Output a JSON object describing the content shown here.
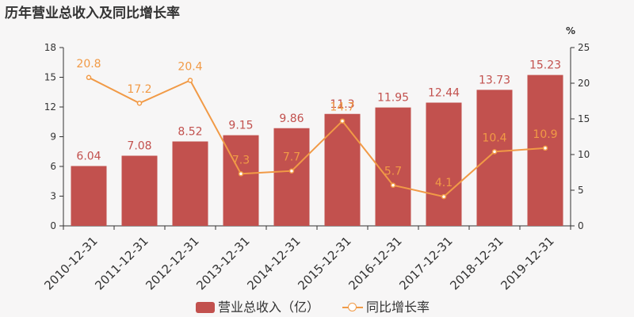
{
  "title": "历年营业总收入及同比增长率",
  "colors": {
    "bar": "#c2514e",
    "line": "#f19a46",
    "axis": "#333333",
    "background": "#f7f6f6"
  },
  "chart_data": {
    "type": "bar",
    "title": "历年营业总收入及同比增长率",
    "categories": [
      "2010-12-31",
      "2011-12-31",
      "2012-12-31",
      "2013-12-31",
      "2014-12-31",
      "2015-12-31",
      "2016-12-31",
      "2017-12-31",
      "2018-12-31",
      "2019-12-31"
    ],
    "series": [
      {
        "name": "营业总收入（亿）",
        "type": "bar",
        "axis": "left",
        "values": [
          6.04,
          7.08,
          8.52,
          9.15,
          9.86,
          11.3,
          11.95,
          12.44,
          13.73,
          15.23
        ],
        "labels": [
          "6.04",
          "7.08",
          "8.52",
          "9.15",
          "9.86",
          "11.3",
          "11.95",
          "12.44",
          "13.73",
          "15.23"
        ]
      },
      {
        "name": "同比增长率",
        "type": "line",
        "axis": "right",
        "values": [
          20.8,
          17.2,
          20.4,
          7.3,
          7.7,
          14.7,
          5.7,
          4.1,
          10.4,
          10.9
        ],
        "labels": [
          "20.8",
          "17.2",
          "20.4",
          "7.3",
          "7.7",
          "14.7",
          "5.7",
          "4.1",
          "10.4",
          "10.9"
        ]
      }
    ],
    "y_left": {
      "ylim": [
        0,
        18
      ],
      "ticks": [
        "0",
        "3",
        "6",
        "9",
        "12",
        "15",
        "18"
      ]
    },
    "y_right": {
      "ylim": [
        0,
        25
      ],
      "ticks": [
        "0",
        "5",
        "10",
        "15",
        "20",
        "25"
      ],
      "unit": "%"
    },
    "legend_position": "bottom-center",
    "grid": false
  },
  "legend": {
    "bar_label": "营业总收入（亿）",
    "line_label": "同比增长率"
  }
}
